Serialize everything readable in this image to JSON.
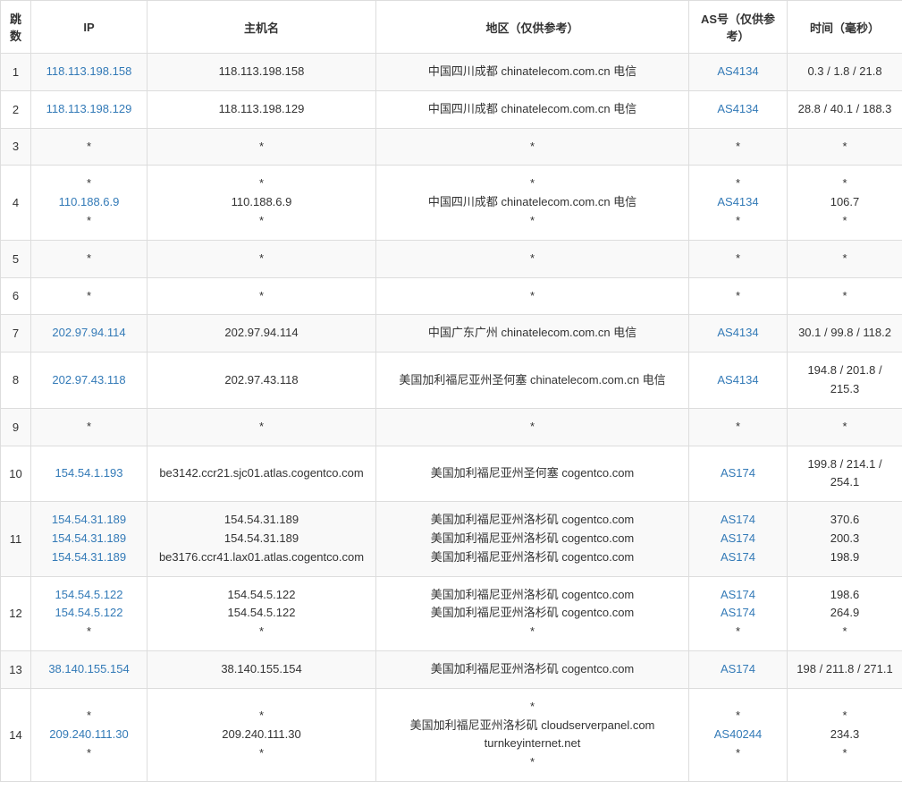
{
  "table": {
    "columns": {
      "hop": "跳数",
      "ip": "IP",
      "hostname": "主机名",
      "region": "地区（仅供参考）",
      "as": "AS号（仅供参考）",
      "time": "时间（毫秒）"
    },
    "star": "*",
    "rows": [
      {
        "hop": "1",
        "ip": [
          "118.113.198.158"
        ],
        "ip_link": [
          true
        ],
        "host": [
          "118.113.198.158"
        ],
        "region": [
          "中国四川成都 chinatelecom.com.cn 电信"
        ],
        "as": [
          "AS4134"
        ],
        "as_link": [
          true
        ],
        "time": [
          "0.3 / 1.8 / 21.8"
        ],
        "alt": true
      },
      {
        "hop": "2",
        "ip": [
          "118.113.198.129"
        ],
        "ip_link": [
          true
        ],
        "host": [
          "118.113.198.129"
        ],
        "region": [
          "中国四川成都 chinatelecom.com.cn 电信"
        ],
        "as": [
          "AS4134"
        ],
        "as_link": [
          true
        ],
        "time": [
          "28.8 / 40.1 / 188.3"
        ],
        "alt": false
      },
      {
        "hop": "3",
        "ip": [
          "*"
        ],
        "ip_link": [
          false
        ],
        "host": [
          "*"
        ],
        "region": [
          "*"
        ],
        "as": [
          "*"
        ],
        "as_link": [
          false
        ],
        "time": [
          "*"
        ],
        "alt": true
      },
      {
        "hop": "4",
        "ip": [
          "*",
          "110.188.6.9",
          "*"
        ],
        "ip_link": [
          false,
          true,
          false
        ],
        "host": [
          "*",
          "110.188.6.9",
          "*"
        ],
        "region": [
          "*",
          "中国四川成都 chinatelecom.com.cn 电信",
          "*"
        ],
        "as": [
          "*",
          "AS4134",
          "*"
        ],
        "as_link": [
          false,
          true,
          false
        ],
        "time": [
          "*",
          "106.7",
          "*"
        ],
        "alt": false
      },
      {
        "hop": "5",
        "ip": [
          "*"
        ],
        "ip_link": [
          false
        ],
        "host": [
          "*"
        ],
        "region": [
          "*"
        ],
        "as": [
          "*"
        ],
        "as_link": [
          false
        ],
        "time": [
          "*"
        ],
        "alt": true
      },
      {
        "hop": "6",
        "ip": [
          "*"
        ],
        "ip_link": [
          false
        ],
        "host": [
          "*"
        ],
        "region": [
          "*"
        ],
        "as": [
          "*"
        ],
        "as_link": [
          false
        ],
        "time": [
          "*"
        ],
        "alt": false
      },
      {
        "hop": "7",
        "ip": [
          "202.97.94.114"
        ],
        "ip_link": [
          true
        ],
        "host": [
          "202.97.94.114"
        ],
        "region": [
          "中国广东广州 chinatelecom.com.cn 电信"
        ],
        "as": [
          "AS4134"
        ],
        "as_link": [
          true
        ],
        "time": [
          "30.1 / 99.8 / 118.2"
        ],
        "alt": true
      },
      {
        "hop": "8",
        "ip": [
          "202.97.43.118"
        ],
        "ip_link": [
          true
        ],
        "host": [
          "202.97.43.118"
        ],
        "region": [
          "美国加利福尼亚州圣何塞 chinatelecom.com.cn 电信"
        ],
        "as": [
          "AS4134"
        ],
        "as_link": [
          true
        ],
        "time": [
          "194.8 / 201.8 / 215.3"
        ],
        "alt": false
      },
      {
        "hop": "9",
        "ip": [
          "*"
        ],
        "ip_link": [
          false
        ],
        "host": [
          "*"
        ],
        "region": [
          "*"
        ],
        "as": [
          "*"
        ],
        "as_link": [
          false
        ],
        "time": [
          "*"
        ],
        "alt": true
      },
      {
        "hop": "10",
        "ip": [
          "154.54.1.193"
        ],
        "ip_link": [
          true
        ],
        "host": [
          "be3142.ccr21.sjc01.atlas.cogentco.com"
        ],
        "region": [
          "美国加利福尼亚州圣何塞 cogentco.com"
        ],
        "as": [
          "AS174"
        ],
        "as_link": [
          true
        ],
        "time": [
          "199.8 / 214.1 / 254.1"
        ],
        "alt": false
      },
      {
        "hop": "11",
        "ip": [
          "154.54.31.189",
          "154.54.31.189",
          "154.54.31.189"
        ],
        "ip_link": [
          true,
          true,
          true
        ],
        "host": [
          "154.54.31.189",
          "154.54.31.189",
          "be3176.ccr41.lax01.atlas.cogentco.com"
        ],
        "region": [
          "美国加利福尼亚州洛杉矶 cogentco.com",
          "美国加利福尼亚州洛杉矶 cogentco.com",
          "美国加利福尼亚州洛杉矶 cogentco.com"
        ],
        "as": [
          "AS174",
          "AS174",
          "AS174"
        ],
        "as_link": [
          true,
          true,
          true
        ],
        "time": [
          "370.6",
          "200.3",
          "198.9"
        ],
        "alt": true
      },
      {
        "hop": "12",
        "ip": [
          "154.54.5.122",
          "154.54.5.122",
          "*"
        ],
        "ip_link": [
          true,
          true,
          false
        ],
        "host": [
          "154.54.5.122",
          "154.54.5.122",
          "*"
        ],
        "region": [
          "美国加利福尼亚州洛杉矶 cogentco.com",
          "美国加利福尼亚州洛杉矶 cogentco.com",
          "*"
        ],
        "as": [
          "AS174",
          "AS174",
          "*"
        ],
        "as_link": [
          true,
          true,
          false
        ],
        "time": [
          "198.6",
          "264.9",
          "*"
        ],
        "alt": false
      },
      {
        "hop": "13",
        "ip": [
          "38.140.155.154"
        ],
        "ip_link": [
          true
        ],
        "host": [
          "38.140.155.154"
        ],
        "region": [
          "美国加利福尼亚州洛杉矶 cogentco.com"
        ],
        "as": [
          "AS174"
        ],
        "as_link": [
          true
        ],
        "time": [
          "198 / 211.8 / 271.1"
        ],
        "alt": true
      },
      {
        "hop": "14",
        "ip": [
          "*",
          "209.240.111.30",
          "*"
        ],
        "ip_link": [
          false,
          true,
          false
        ],
        "host": [
          "*",
          "209.240.111.30",
          "*"
        ],
        "region": [
          "*",
          "美国加利福尼亚州洛杉矶 cloudserverpanel.com turnkeyinternet.net",
          "*"
        ],
        "as": [
          "*",
          "AS40244",
          "*"
        ],
        "as_link": [
          false,
          true,
          false
        ],
        "time": [
          "*",
          "234.3",
          "*"
        ],
        "alt": false
      }
    ],
    "colors": {
      "border": "#dddddd",
      "alt_bg": "#f9f9f9",
      "link": "#337ab7",
      "text": "#333333"
    }
  }
}
